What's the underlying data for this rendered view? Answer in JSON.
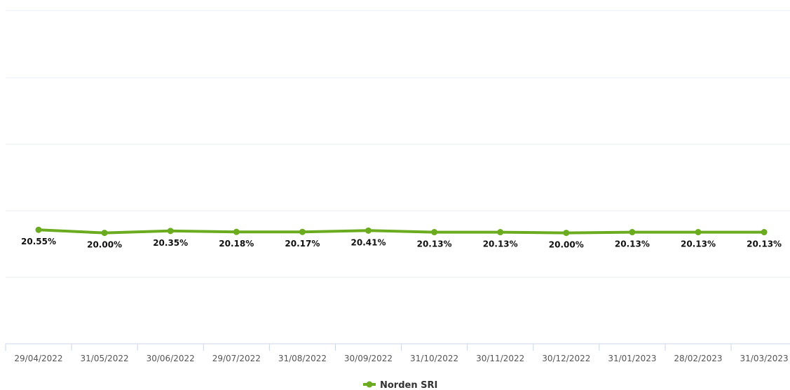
{
  "chart_data": {
    "type": "line",
    "title": "",
    "xlabel": "",
    "ylabel": "",
    "x": [
      "29/04/2022",
      "31/05/2022",
      "30/06/2022",
      "29/07/2022",
      "31/08/2022",
      "30/09/2022",
      "31/10/2022",
      "30/11/2022",
      "30/12/2022",
      "31/01/2023",
      "28/02/2023",
      "31/03/2023"
    ],
    "series": [
      {
        "name": "Norden SRI",
        "values": [
          20.55,
          20.0,
          20.35,
          20.18,
          20.17,
          20.41,
          20.13,
          20.13,
          20.0,
          20.13,
          20.13,
          20.13
        ],
        "labels": [
          "20.55%",
          "20.00%",
          "20.35%",
          "20.18%",
          "20.17%",
          "20.41%",
          "20.13%",
          "20.13%",
          "20.00%",
          "20.13%",
          "20.13%",
          "20.13%"
        ],
        "color": "#6aab1f"
      }
    ],
    "ylim": [
      0,
      100
    ],
    "grid": true,
    "legend": "bottom-center",
    "colors": {
      "grid": "#e9eef3",
      "axis": "#ccd6eb",
      "data_label": "#111111",
      "tick_label": "#555555"
    }
  }
}
